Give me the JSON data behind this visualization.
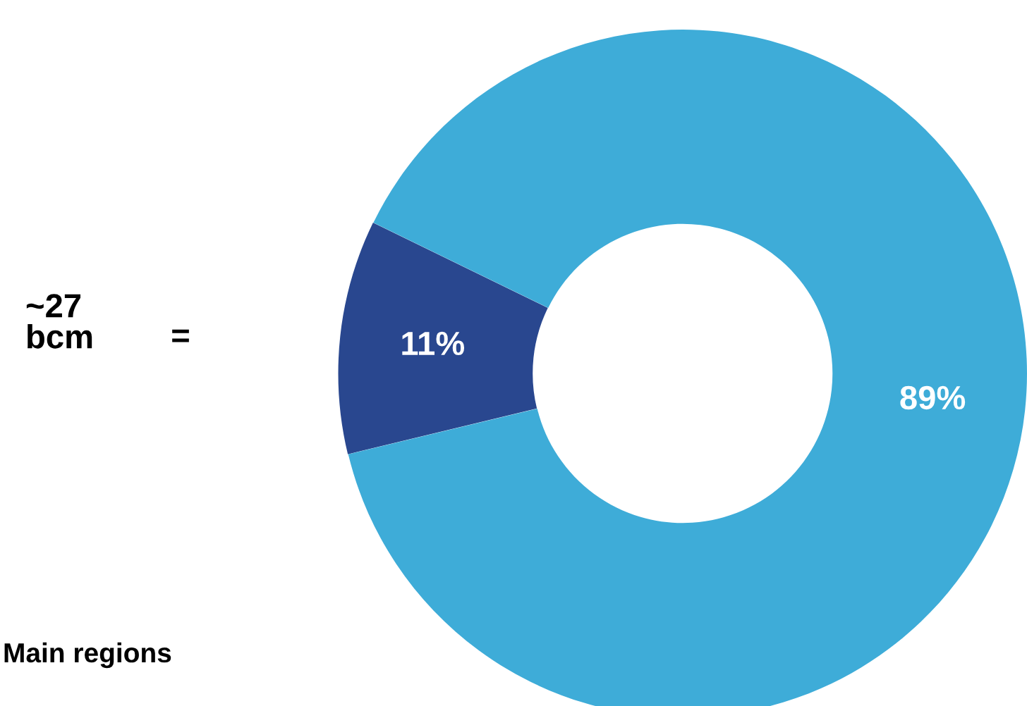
{
  "chart_data": {
    "type": "donut",
    "categories": [
      null,
      null
    ],
    "values": [
      11,
      89
    ],
    "value_labels": [
      "11%",
      "89%"
    ],
    "colors": [
      "#29478f",
      "#3eacd8"
    ],
    "annotations": [
      "~27\nbcm",
      "=",
      "Main regions"
    ]
  }
}
